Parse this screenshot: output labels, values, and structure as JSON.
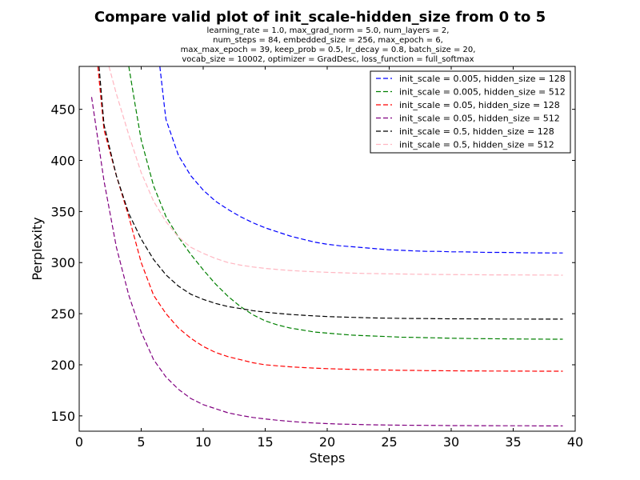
{
  "chart_data": {
    "type": "line",
    "title": "Compare valid plot of init_scale-hidden_size from 0 to 5",
    "subtitle_lines": [
      "learning_rate = 1.0, max_grad_norm = 5.0, num_layers = 2,",
      "num_steps = 84, embedded_size = 256, max_epoch = 6,",
      "max_max_epoch = 39, keep_prob = 0.5, lr_decay = 0.8, batch_size = 20,",
      "vocab_size = 10002, optimizer = GradDesc, loss_function = full_softmax"
    ],
    "xlabel": "Steps",
    "ylabel": "Perplexity",
    "xlim": [
      0,
      40
    ],
    "ylim": [
      135,
      492
    ],
    "xticks": [
      "0",
      "5",
      "10",
      "15",
      "20",
      "25",
      "30",
      "35",
      "40"
    ],
    "yticks": [
      "150",
      "200",
      "250",
      "300",
      "350",
      "400",
      "450"
    ],
    "grid": false,
    "legend_position": "top-right",
    "series": [
      {
        "name": "init_scale = 0.005, hidden_size = 128",
        "color": "#0000ff",
        "x": [
          6.5,
          6.9,
          7,
          8,
          9,
          10,
          11,
          12,
          13,
          14,
          15,
          16,
          17,
          18,
          19,
          20,
          21,
          22,
          23,
          24,
          25,
          26,
          27,
          28,
          29,
          30,
          31,
          32,
          33,
          34,
          35,
          36,
          37,
          38,
          39
        ],
        "y": [
          492,
          450,
          440,
          405,
          385,
          371,
          360,
          352,
          345,
          339,
          334,
          330,
          326,
          323,
          320,
          318,
          316.5,
          315.5,
          314.5,
          313.5,
          312.5,
          312,
          311.5,
          311,
          311,
          310.5,
          310.5,
          310.2,
          310,
          310,
          309.8,
          309.6,
          309.5,
          309.4,
          309.4
        ]
      },
      {
        "name": "init_scale = 0.005, hidden_size = 512",
        "color": "#008000",
        "x": [
          4,
          4.5,
          5,
          6,
          7,
          8,
          9,
          10,
          11,
          12,
          13,
          14,
          15,
          16,
          17,
          18,
          19,
          20,
          21,
          22,
          23,
          24,
          25,
          26,
          27,
          28,
          29,
          30,
          31,
          32,
          33,
          34,
          35,
          36,
          37,
          38,
          39
        ],
        "y": [
          492,
          455,
          420,
          375,
          345,
          325,
          308,
          293,
          279,
          267,
          257,
          249,
          243,
          239,
          236,
          234,
          232,
          231,
          230,
          229,
          228.5,
          228,
          227.5,
          227,
          226.8,
          226.5,
          226.3,
          226,
          225.8,
          225.6,
          225.5,
          225.4,
          225.3,
          225.2,
          225.1,
          225,
          225
        ]
      },
      {
        "name": "init_scale = 0.05, hidden_size = 128",
        "color": "#ff0000",
        "x": [
          1.5,
          2,
          3,
          4,
          5,
          6,
          7,
          8,
          9,
          10,
          11,
          12,
          13,
          14,
          15,
          16,
          17,
          18,
          19,
          20,
          21,
          22,
          23,
          24,
          25,
          26,
          27,
          28,
          29,
          30,
          31,
          32,
          33,
          34,
          35,
          36,
          37,
          38,
          39
        ],
        "y": [
          492,
          430,
          385,
          345,
          300,
          268,
          250,
          236,
          226,
          218,
          212,
          208,
          205,
          202,
          200,
          199,
          198,
          197.3,
          196.7,
          196.2,
          195.8,
          195.5,
          195.2,
          195,
          194.8,
          194.6,
          194.5,
          194.3,
          194.2,
          194.1,
          194,
          194,
          193.9,
          193.9,
          193.8,
          193.8,
          193.7,
          193.7,
          193.7
        ]
      },
      {
        "name": "init_scale = 0.05, hidden_size = 512",
        "color": "#800080",
        "x": [
          1,
          2,
          3,
          4,
          5,
          6,
          7,
          8,
          9,
          10,
          11,
          12,
          13,
          14,
          15,
          16,
          17,
          18,
          19,
          20,
          21,
          22,
          23,
          24,
          25,
          26,
          27,
          28,
          29,
          30,
          31,
          32,
          33,
          34,
          35,
          36,
          37,
          38,
          39
        ],
        "y": [
          462,
          380,
          315,
          268,
          232,
          205,
          188,
          176,
          167,
          161,
          157,
          153,
          150.5,
          148.5,
          147,
          145.7,
          144.6,
          143.7,
          143,
          142.4,
          142,
          141.7,
          141.4,
          141.2,
          141,
          140.9,
          140.8,
          140.7,
          140.6,
          140.5,
          140.5,
          140.4,
          140.4,
          140.3,
          140.3,
          140.3,
          140.2,
          140.2,
          140.2
        ]
      },
      {
        "name": "init_scale = 0.5, hidden_size = 128",
        "color": "#000000",
        "x": [
          1.6,
          2,
          3,
          4,
          5,
          6,
          7,
          8,
          9,
          10,
          11,
          12,
          13,
          14,
          15,
          16,
          17,
          18,
          19,
          20,
          21,
          22,
          23,
          24,
          25,
          26,
          27,
          28,
          29,
          30,
          31,
          32,
          33,
          34,
          35,
          36,
          37,
          38,
          39
        ],
        "y": [
          492,
          435,
          385,
          348,
          323,
          303,
          288,
          277,
          269,
          264,
          260,
          257,
          255,
          253,
          251.5,
          250.3,
          249.3,
          248.5,
          247.8,
          247.2,
          246.8,
          246.4,
          246.1,
          245.8,
          245.6,
          245.4,
          245.3,
          245.2,
          245.1,
          245,
          245,
          244.9,
          244.9,
          244.8,
          244.8,
          244.8,
          244.7,
          244.7,
          244.7
        ]
      },
      {
        "name": "init_scale = 0.5, hidden_size = 512",
        "color": "#ffb6c1",
        "x": [
          2.4,
          3,
          4,
          5,
          6,
          7,
          8,
          9,
          10,
          11,
          12,
          13,
          14,
          15,
          16,
          17,
          18,
          19,
          20,
          21,
          22,
          23,
          24,
          25,
          26,
          27,
          28,
          29,
          30,
          31,
          32,
          33,
          34,
          35,
          36,
          37,
          38,
          39
        ],
        "y": [
          492,
          465,
          425,
          388,
          360,
          340,
          325,
          315,
          309,
          304,
          300,
          297.5,
          295.7,
          294.3,
          293.2,
          292.3,
          291.6,
          291,
          290.5,
          290.1,
          289.7,
          289.4,
          289.2,
          289,
          288.8,
          288.6,
          288.5,
          288.4,
          288.3,
          288.2,
          288.1,
          288,
          288,
          287.9,
          287.9,
          287.8,
          287.8,
          287.7
        ]
      }
    ]
  }
}
